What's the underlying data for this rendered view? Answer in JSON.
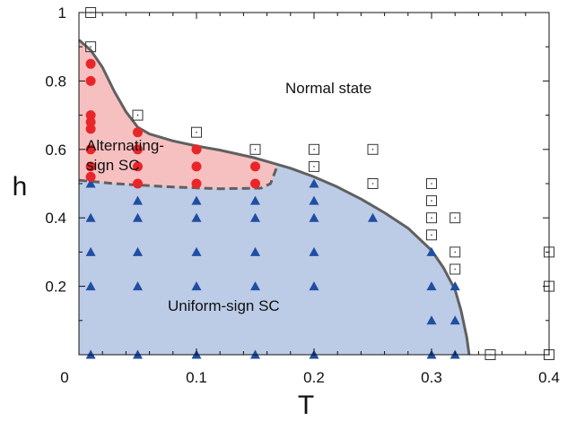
{
  "chart_data": {
    "type": "scatter",
    "xlabel": "T",
    "ylabel": "h",
    "xlim": [
      0,
      0.4
    ],
    "ylim": [
      0,
      1
    ],
    "x_ticks": [
      "0",
      "0.1",
      "0.2",
      "0.3",
      "0.4"
    ],
    "y_ticks": [
      "0.2",
      "0.4",
      "0.6",
      "0.8",
      "1"
    ],
    "grid": false,
    "legend": "none",
    "annotations": {
      "normal": "Normal state",
      "alternating_line1": "Alternating-",
      "alternating_line2": "sign SC",
      "uniform": "Uniform-sign SC"
    },
    "colors": {
      "alternating_fill": "#f7c0c0",
      "uniform_fill": "#bccbe6",
      "boundary": "#606060",
      "alternating_marker": "#e8262a",
      "uniform_marker": "#1f4ea3",
      "normal_marker": "#333333"
    },
    "series": [
      {
        "marker": "triangle",
        "points": [
          [
            0.01,
            0.0
          ],
          [
            0.01,
            0.2
          ],
          [
            0.01,
            0.3
          ],
          [
            0.01,
            0.4
          ],
          [
            0.01,
            0.5
          ],
          [
            0.05,
            0.0
          ],
          [
            0.05,
            0.2
          ],
          [
            0.05,
            0.3
          ],
          [
            0.05,
            0.4
          ],
          [
            0.05,
            0.45
          ],
          [
            0.1,
            0.0
          ],
          [
            0.1,
            0.2
          ],
          [
            0.1,
            0.3
          ],
          [
            0.1,
            0.4
          ],
          [
            0.1,
            0.45
          ],
          [
            0.15,
            0.0
          ],
          [
            0.15,
            0.2
          ],
          [
            0.15,
            0.3
          ],
          [
            0.15,
            0.4
          ],
          [
            0.15,
            0.45
          ],
          [
            0.2,
            0.0
          ],
          [
            0.2,
            0.2
          ],
          [
            0.2,
            0.3
          ],
          [
            0.2,
            0.4
          ],
          [
            0.2,
            0.45
          ],
          [
            0.2,
            0.5
          ],
          [
            0.25,
            0.4
          ],
          [
            0.3,
            0.0
          ],
          [
            0.3,
            0.1
          ],
          [
            0.3,
            0.2
          ],
          [
            0.3,
            0.3
          ],
          [
            0.32,
            0.0
          ],
          [
            0.32,
            0.1
          ],
          [
            0.32,
            0.2
          ]
        ]
      },
      {
        "marker": "circle",
        "points": [
          [
            0.01,
            0.85
          ],
          [
            0.01,
            0.8
          ],
          [
            0.01,
            0.7
          ],
          [
            0.01,
            0.68
          ],
          [
            0.01,
            0.66
          ],
          [
            0.01,
            0.6
          ],
          [
            0.01,
            0.55
          ],
          [
            0.01,
            0.52
          ],
          [
            0.05,
            0.65
          ],
          [
            0.05,
            0.6
          ],
          [
            0.05,
            0.55
          ],
          [
            0.05,
            0.5
          ],
          [
            0.1,
            0.6
          ],
          [
            0.1,
            0.55
          ],
          [
            0.1,
            0.5
          ],
          [
            0.15,
            0.55
          ],
          [
            0.15,
            0.5
          ]
        ]
      },
      {
        "marker": "open-square",
        "points": [
          [
            0.01,
            1.0
          ],
          [
            0.01,
            0.9
          ],
          [
            0.05,
            0.7
          ],
          [
            0.1,
            0.65
          ],
          [
            0.15,
            0.6
          ],
          [
            0.2,
            0.6
          ],
          [
            0.2,
            0.55
          ],
          [
            0.25,
            0.6
          ],
          [
            0.25,
            0.5
          ],
          [
            0.3,
            0.5
          ],
          [
            0.3,
            0.45
          ],
          [
            0.3,
            0.4
          ],
          [
            0.3,
            0.35
          ],
          [
            0.32,
            0.4
          ],
          [
            0.32,
            0.3
          ],
          [
            0.32,
            0.25
          ],
          [
            0.35,
            0.0
          ],
          [
            0.4,
            0.3
          ],
          [
            0.4,
            0.2
          ],
          [
            0.4,
            0.0
          ]
        ]
      }
    ],
    "boundaries": {
      "normal": [
        [
          0.0,
          0.92
        ],
        [
          0.01,
          0.89
        ],
        [
          0.02,
          0.84
        ],
        [
          0.03,
          0.77
        ],
        [
          0.04,
          0.71
        ],
        [
          0.05,
          0.665
        ],
        [
          0.06,
          0.645
        ],
        [
          0.08,
          0.625
        ],
        [
          0.1,
          0.61
        ],
        [
          0.12,
          0.598
        ],
        [
          0.15,
          0.575
        ],
        [
          0.18,
          0.545
        ],
        [
          0.2,
          0.52
        ],
        [
          0.22,
          0.49
        ],
        [
          0.24,
          0.455
        ],
        [
          0.26,
          0.415
        ],
        [
          0.28,
          0.37
        ],
        [
          0.3,
          0.305
        ],
        [
          0.31,
          0.255
        ],
        [
          0.32,
          0.19
        ],
        [
          0.325,
          0.13
        ],
        [
          0.33,
          0.05
        ],
        [
          0.332,
          0.0
        ]
      ],
      "alternating_uniform": [
        [
          0.0,
          0.51
        ],
        [
          0.03,
          0.5
        ],
        [
          0.08,
          0.49
        ],
        [
          0.12,
          0.485
        ],
        [
          0.155,
          0.487
        ],
        [
          0.163,
          0.5
        ],
        [
          0.168,
          0.545
        ]
      ]
    }
  }
}
